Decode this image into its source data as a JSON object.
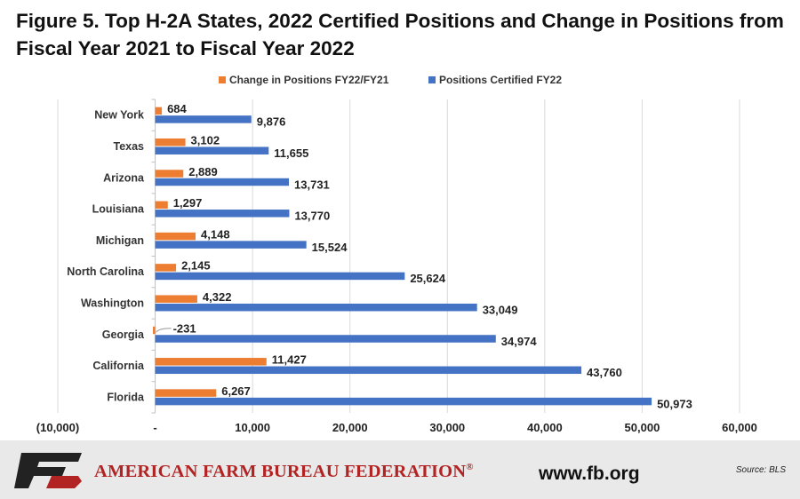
{
  "title": "Figure 5. Top H-2A States, 2022 Certified Positions and Change in Positions from Fiscal Year 2021 to Fiscal Year 2022",
  "colors": {
    "change": "#ed7d31",
    "positions": "#4472c4",
    "grid": "#d9d9d9",
    "footer_text": "#b22424"
  },
  "footer": {
    "logo_text": "FB",
    "org_name": "AMERICAN FARM BUREAU FEDERATION",
    "org_mark": "®",
    "url": "www.fb.org",
    "source": "Source: BLS"
  },
  "chart_data": {
    "type": "bar",
    "orientation": "horizontal",
    "title": "Figure 5. Top H-2A States, 2022 Certified Positions and Change in Positions from Fiscal Year 2021 to Fiscal Year 2022",
    "categories": [
      "New York",
      "Texas",
      "Arizona",
      "Louisiana",
      "Michigan",
      "North Carolina",
      "Washington",
      "Georgia",
      "California",
      "Florida"
    ],
    "series": [
      {
        "name": "Change in Positions FY22/FY21",
        "values": [
          684,
          3102,
          2889,
          1297,
          4148,
          2145,
          4322,
          -231,
          11427,
          6267
        ],
        "labels": [
          "684",
          "3,102",
          "2,889",
          "1,297",
          "4,148",
          "2,145",
          "4,322",
          "-231",
          "11,427",
          "6,267"
        ]
      },
      {
        "name": "Positions Certified FY22",
        "values": [
          9876,
          11655,
          13731,
          13770,
          15524,
          25624,
          33049,
          34974,
          43760,
          50973
        ],
        "labels": [
          "9,876",
          "11,655",
          "13,731",
          "13,770",
          "15,524",
          "25,624",
          "33,049",
          "34,974",
          "43,760",
          "50,973"
        ]
      }
    ],
    "xlim": [
      -10000,
      60000
    ],
    "xticks": [
      -10000,
      0,
      10000,
      20000,
      30000,
      40000,
      50000,
      60000
    ],
    "xtick_labels": [
      "(10,000)",
      "-",
      "10,000",
      "20,000",
      "30,000",
      "40,000",
      "50,000",
      "60,000"
    ],
    "grid": true,
    "legend_position": "top"
  }
}
